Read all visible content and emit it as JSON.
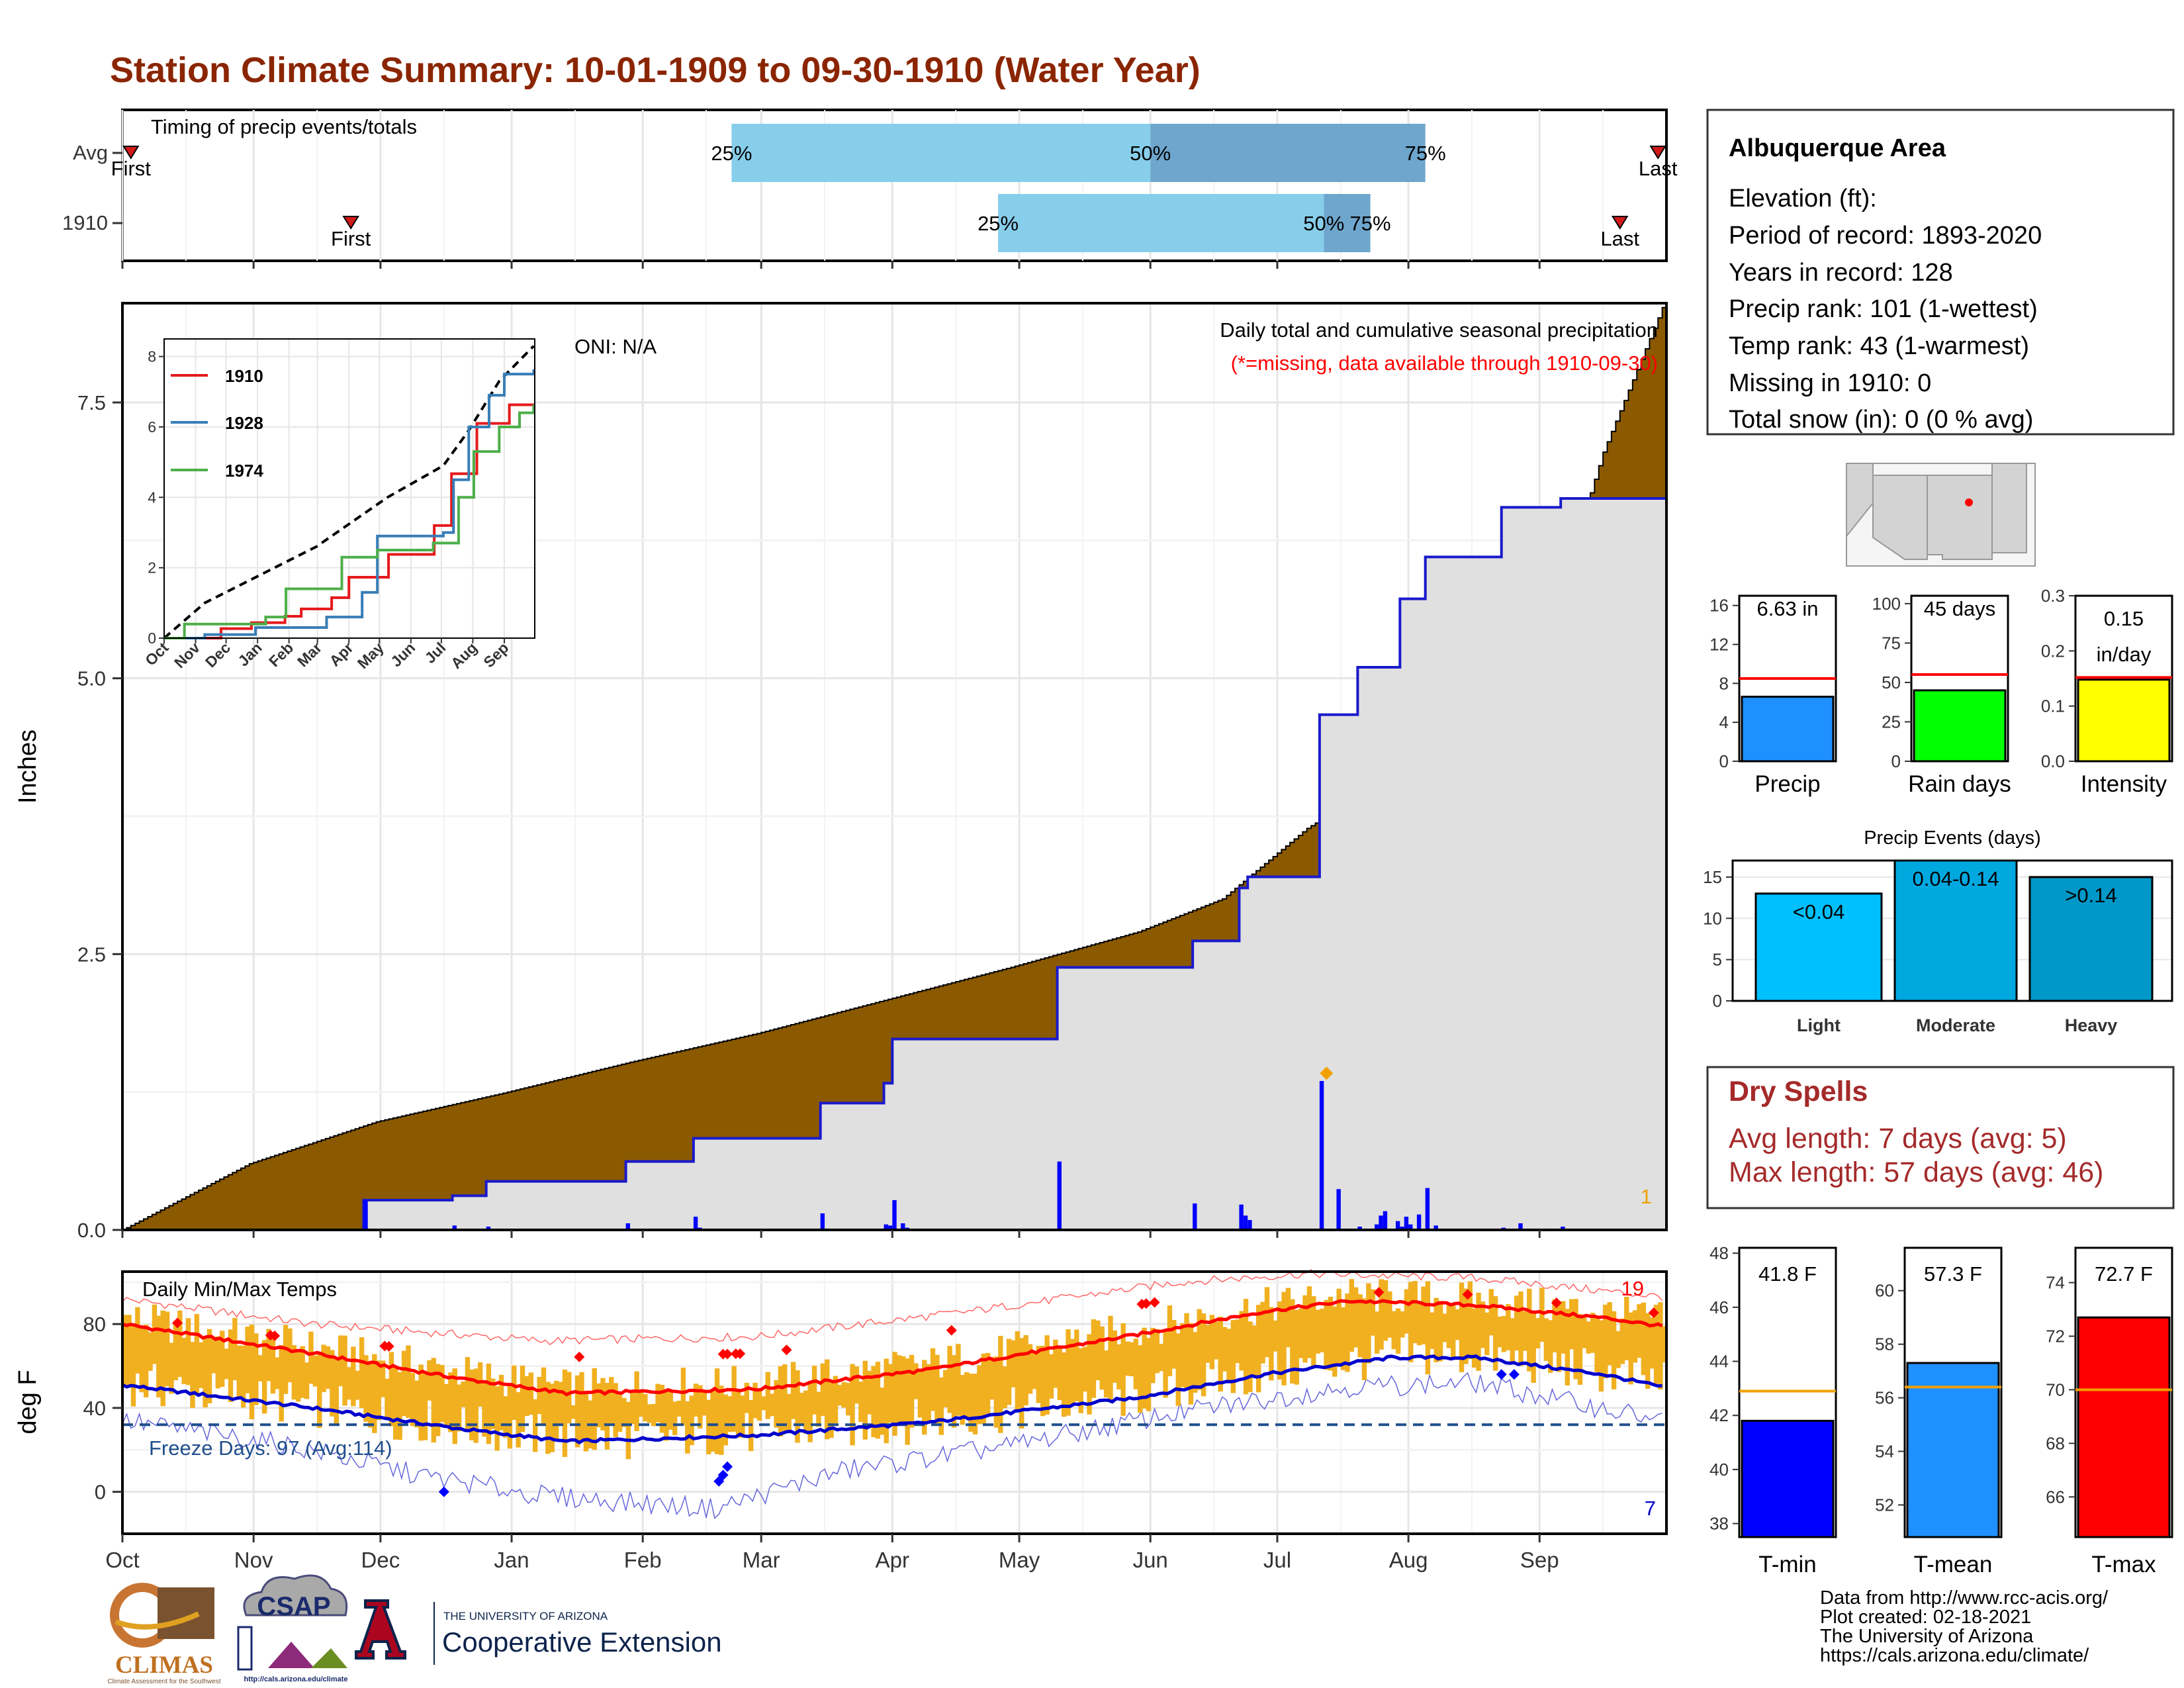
{
  "page": {
    "title": "Station Climate Summary: 10-01-1909 to 09-30-1910 (Water Year)"
  },
  "months": [
    "Oct",
    "Nov",
    "Dec",
    "Jan",
    "Feb",
    "Mar",
    "Apr",
    "May",
    "Jun",
    "Jul",
    "Aug",
    "Sep"
  ],
  "timing_panel": {
    "title": "Timing of precip events/totals",
    "row_labels": [
      "Avg",
      "1910"
    ],
    "first_label": "First",
    "last_label": "Last",
    "rows": [
      {
        "name": "Avg",
        "first": "Oct 3",
        "p25": "Feb 22",
        "p50": "Jun 1",
        "p75": "Aug 5",
        "last": "Sep 29",
        "p25_label": "25%",
        "p50_label": "50%",
        "p75_label": "75%"
      },
      {
        "name": "1910",
        "first": "Nov 24",
        "p25": "Apr 26",
        "p50": "Jul 12",
        "p75": "Jul 23",
        "last": "Sep 20",
        "p25_label": "25%",
        "p50_label": "50%",
        "p75_label": "75%"
      }
    ],
    "colors": {
      "light": "#87ceeb",
      "dark": "#6ea6cd",
      "marker": "#d11a1a"
    }
  },
  "chart_data": [
    {
      "type": "area",
      "name": "cumulative_precip",
      "ylabel": "Inches",
      "ylim": [
        0,
        8.4
      ],
      "yticks": [
        "0.0",
        "2.5",
        "5.0",
        "7.5"
      ],
      "annotation_main": "Daily total and cumulative seasonal precipitation",
      "annotation_missing": "(*=missing, data available through 1910-09-30)",
      "oni_label": "ONI: N/A",
      "corner_count": "1",
      "avg_cumulative_knots_day_value": [
        [
          0,
          0
        ],
        [
          30,
          0.6
        ],
        [
          60,
          0.98
        ],
        [
          90,
          1.24
        ],
        [
          120,
          1.52
        ],
        [
          150,
          1.78
        ],
        [
          180,
          2.08
        ],
        [
          210,
          2.38
        ],
        [
          240,
          2.7
        ],
        [
          260,
          3.0
        ],
        [
          280,
          3.64
        ],
        [
          300,
          4.12
        ],
        [
          320,
          4.9
        ],
        [
          340,
          5.82
        ],
        [
          350,
          7.05
        ],
        [
          364,
          8.36
        ]
      ],
      "cumulative_1910_steps_day_value": [
        [
          56,
          0
        ],
        [
          57,
          0.27
        ],
        [
          78,
          0.31
        ],
        [
          86,
          0.44
        ],
        [
          119,
          0.62
        ],
        [
          135,
          0.83
        ],
        [
          165,
          1.15
        ],
        [
          180,
          1.33
        ],
        [
          182,
          1.73
        ],
        [
          221,
          2.38
        ],
        [
          253,
          2.62
        ],
        [
          264,
          3.1
        ],
        [
          266,
          3.2
        ],
        [
          283,
          4.67
        ],
        [
          292,
          5.1
        ],
        [
          302,
          5.72
        ],
        [
          308,
          6.1
        ],
        [
          326,
          6.55
        ],
        [
          340,
          6.63
        ],
        [
          364,
          6.63
        ]
      ],
      "daily_1910_day_value": [
        [
          57,
          0.27
        ],
        [
          78,
          0.04
        ],
        [
          86,
          0.03
        ],
        [
          119,
          0.06
        ],
        [
          135,
          0.12
        ],
        [
          136,
          0.02
        ],
        [
          165,
          0.15
        ],
        [
          180,
          0.05
        ],
        [
          181,
          0.04
        ],
        [
          182,
          0.27
        ],
        [
          184,
          0.06
        ],
        [
          185,
          0.02
        ],
        [
          221,
          0.62
        ],
        [
          253,
          0.24
        ],
        [
          264,
          0.23
        ],
        [
          265,
          0.13
        ],
        [
          266,
          0.09
        ],
        [
          283,
          1.35
        ],
        [
          287,
          0.37
        ],
        [
          292,
          0.03
        ],
        [
          296,
          0.05
        ],
        [
          297,
          0.13
        ],
        [
          298,
          0.17
        ],
        [
          301,
          0.08
        ],
        [
          302,
          0.03
        ],
        [
          303,
          0.12
        ],
        [
          304,
          0.05
        ],
        [
          306,
          0.14
        ],
        [
          308,
          0.38
        ],
        [
          310,
          0.04
        ],
        [
          326,
          0.02
        ],
        [
          330,
          0.06
        ],
        [
          340,
          0.03
        ]
      ],
      "max_event_marker": "Jul 12",
      "colors": {
        "avg_fill": "#8b5a00",
        "year_fill": "#e0e0e0",
        "year_line": "#1a1acc",
        "daily_bars": "#0000ff",
        "marker": "#f0a000"
      }
    },
    {
      "type": "line",
      "name": "inset_cumulative_comparison",
      "ylim": [
        0,
        8.5
      ],
      "yticks": [
        "0",
        "2",
        "4",
        "6",
        "8"
      ],
      "xticks": [
        "Oct",
        "Nov",
        "Dec",
        "Jan",
        "Feb",
        "Mar",
        "Apr",
        "May",
        "Jun",
        "Jul",
        "Aug",
        "Sep"
      ],
      "series": [
        {
          "name": "1910",
          "color": "#e41a1c",
          "steps": [
            [
              0,
              0
            ],
            [
              56,
              0.27
            ],
            [
              86,
              0.44
            ],
            [
              119,
              0.62
            ],
            [
              135,
              0.83
            ],
            [
              165,
              1.15
            ],
            [
              182,
              1.73
            ],
            [
              221,
              2.38
            ],
            [
              266,
              3.2
            ],
            [
              283,
              4.67
            ],
            [
              308,
              6.1
            ],
            [
              340,
              6.63
            ],
            [
              364,
              6.63
            ]
          ]
        },
        {
          "name": "1928",
          "color": "#377eb8",
          "steps": [
            [
              0,
              0
            ],
            [
              40,
              0.1
            ],
            [
              90,
              0.3
            ],
            [
              160,
              0.6
            ],
            [
              195,
              1.3
            ],
            [
              210,
              2.9
            ],
            [
              275,
              3.0
            ],
            [
              285,
              4.5
            ],
            [
              300,
              6.0
            ],
            [
              320,
              6.9
            ],
            [
              335,
              7.5
            ],
            [
              364,
              7.6
            ]
          ]
        },
        {
          "name": "1974",
          "color": "#4daf4a",
          "steps": [
            [
              0,
              0
            ],
            [
              20,
              0.4
            ],
            [
              100,
              0.6
            ],
            [
              120,
              1.4
            ],
            [
              175,
              2.3
            ],
            [
              210,
              2.5
            ],
            [
              265,
              2.7
            ],
            [
              290,
              4.0
            ],
            [
              305,
              5.3
            ],
            [
              330,
              6.0
            ],
            [
              350,
              6.4
            ],
            [
              364,
              6.6
            ]
          ]
        }
      ],
      "avg_line": {
        "style": "dashed",
        "color": "#000000",
        "points": [
          [
            0,
            0
          ],
          [
            40,
            1.0
          ],
          [
            150,
            2.6
          ],
          [
            220,
            4.0
          ],
          [
            275,
            4.9
          ],
          [
            300,
            5.9
          ],
          [
            330,
            7.3
          ],
          [
            364,
            8.3
          ]
        ]
      }
    },
    {
      "type": "line",
      "name": "daily_temps",
      "title": "Daily Min/Max Temps",
      "ylabel": "deg F",
      "ylim": [
        -20,
        105
      ],
      "yticks": [
        "0",
        "40",
        "80"
      ],
      "freeze_label": "Freeze Days: 97 (Avg:114)",
      "freeze_line_value": 32,
      "record_high_count": "19",
      "record_low_count": "7",
      "normal_max_knots": [
        [
          0,
          80
        ],
        [
          45,
          66
        ],
        [
          80,
          54
        ],
        [
          105,
          47
        ],
        [
          150,
          49
        ],
        [
          190,
          58
        ],
        [
          240,
          75
        ],
        [
          270,
          86
        ],
        [
          290,
          91
        ],
        [
          320,
          89
        ],
        [
          350,
          83
        ],
        [
          364,
          79
        ]
      ],
      "normal_min_knots": [
        [
          0,
          51
        ],
        [
          45,
          40
        ],
        [
          80,
          30
        ],
        [
          105,
          24
        ],
        [
          150,
          27
        ],
        [
          190,
          33
        ],
        [
          240,
          45
        ],
        [
          270,
          56
        ],
        [
          300,
          64
        ],
        [
          320,
          64
        ],
        [
          350,
          56
        ],
        [
          364,
          50
        ]
      ],
      "record_max_knots": [
        [
          0,
          92
        ],
        [
          45,
          80
        ],
        [
          100,
          72
        ],
        [
          150,
          74
        ],
        [
          200,
          86
        ],
        [
          250,
          100
        ],
        [
          280,
          104
        ],
        [
          320,
          102
        ],
        [
          364,
          93
        ]
      ],
      "record_min_knots": [
        [
          0,
          34
        ],
        [
          40,
          22
        ],
        [
          70,
          8
        ],
        [
          100,
          -2
        ],
        [
          140,
          -8
        ],
        [
          170,
          10
        ],
        [
          210,
          22
        ],
        [
          250,
          38
        ],
        [
          290,
          50
        ],
        [
          320,
          52
        ],
        [
          364,
          34
        ]
      ],
      "colors": {
        "range_bars": "#f0b020",
        "normal_max": "#ff0000",
        "normal_min": "#0000cc",
        "record_max": "#ff6666",
        "record_min": "#6666dd",
        "freeze": "#1f4e8c",
        "hi_marker": "#ff0000",
        "lo_marker": "#0000ff",
        "record_high_count": "#ff0000",
        "record_low_count": "#0000cc"
      }
    },
    {
      "type": "bar",
      "name": "rank_bars",
      "panels": [
        {
          "label": "Precip",
          "value_label": "6.63 in",
          "value": 6.63,
          "avg": 8.5,
          "ylim": [
            0,
            17
          ],
          "yticks": [
            "0",
            "4",
            "8",
            "12",
            "16"
          ],
          "color": "#1e90ff"
        },
        {
          "label": "Rain days",
          "value_label": "45 days",
          "value": 45,
          "avg": 55,
          "ylim": [
            0,
            105
          ],
          "yticks": [
            "0",
            "25",
            "50",
            "75",
            "100"
          ],
          "color": "#00ff00"
        },
        {
          "label": "Intensity",
          "value_label": "0.15 in/day",
          "value": 0.148,
          "avg": 0.152,
          "ylim": [
            0,
            0.3
          ],
          "yticks": [
            "0.0",
            "0.1",
            "0.2",
            "0.3"
          ],
          "color": "#ffff00"
        }
      ]
    },
    {
      "type": "bar",
      "name": "precip_events",
      "title": "Precip Events (days)",
      "categories": [
        "Light",
        "Moderate",
        "Heavy"
      ],
      "value_labels": [
        "<0.04",
        "0.04-0.14",
        ">0.14"
      ],
      "values": [
        13,
        17,
        15
      ],
      "ylim": [
        0,
        17
      ],
      "yticks": [
        "0",
        "5",
        "10",
        "15"
      ],
      "colors": [
        "#00bfff",
        "#00a8e0",
        "#0098c8"
      ]
    },
    {
      "type": "bar",
      "name": "temp_bars",
      "panels": [
        {
          "label": "T-min",
          "value_label": "41.8 F",
          "value": 41.8,
          "avg": 42.9,
          "ylim": [
            37.5,
            48.2
          ],
          "yticks": [
            "38",
            "40",
            "42",
            "44",
            "46",
            "48"
          ],
          "color": "#0000ff"
        },
        {
          "label": "T-mean",
          "value_label": "57.3 F",
          "value": 57.3,
          "avg": 56.4,
          "ylim": [
            50.8,
            61.6
          ],
          "yticks": [
            "52",
            "54",
            "56",
            "58",
            "60"
          ],
          "color": "#1e90ff"
        },
        {
          "label": "T-max",
          "value_label": "72.7 F",
          "value": 72.7,
          "avg": 70.0,
          "ylim": [
            64.5,
            75.3
          ],
          "yticks": [
            "66",
            "68",
            "70",
            "72",
            "74"
          ],
          "color": "#ff0000"
        }
      ]
    }
  ],
  "station": {
    "name": "Albuquerque Area",
    "lines": [
      "Elevation (ft):",
      "Period of record: 1893-2020",
      "Years in record: 128",
      "Precip rank: 101 (1-wettest)",
      "Temp rank: 43 (1-warmest)",
      "Missing in 1910: 0",
      "Total snow (in): 0 (0 % avg)"
    ]
  },
  "dry_spells": {
    "title": "Dry Spells",
    "lines": [
      "Avg length: 7 days (avg: 5)",
      "Max length: 57 days (avg: 46)"
    ],
    "color": "#a52a2a"
  },
  "footer": {
    "lines": [
      "Data from http://www.rcc-acis.org/",
      "Plot created: 02-18-2021",
      "The University of Arizona",
      "https://cals.arizona.edu/climate/"
    ],
    "logos": {
      "climas": "CLIMAS",
      "climas_sub": "Climate Assessment for the Southwest",
      "csap": "CSAP",
      "csap_url": "http://cals.arizona.edu/climate",
      "ua_top": "THE UNIVERSITY OF ARIZONA",
      "ua_bottom": "Cooperative Extension"
    }
  },
  "colors": {
    "title": "#8b2500",
    "axis": "#000000",
    "grid": "#ebebeb"
  }
}
